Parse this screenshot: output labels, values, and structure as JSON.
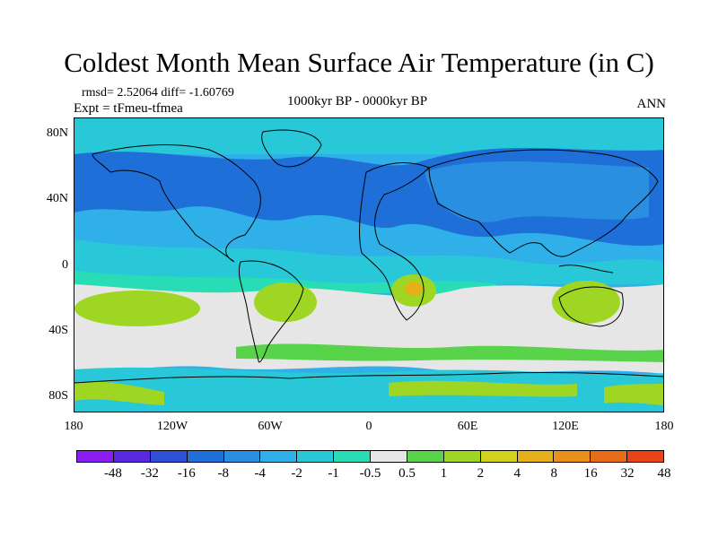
{
  "title": "Coldest Month Mean Surface Air Temperature (in C)",
  "stats": "rmsd= 2.52064 diff= -1.60769",
  "experiment": "Expt = tFmeu-tfmea",
  "period": "1000kyr BP - 0000kyr BP",
  "season": "ANN",
  "lat_labels": [
    "80N",
    "40N",
    "0",
    "40S",
    "80S"
  ],
  "lon_labels": [
    "180",
    "120W",
    "60W",
    "0",
    "60E",
    "120E",
    "180"
  ],
  "colorbar": {
    "colors": [
      "#8c1df2",
      "#5a28e0",
      "#2e4fd6",
      "#1e6fd8",
      "#2a8fe0",
      "#2fb0e8",
      "#29c8d8",
      "#28ddb6",
      "#e6e6e6",
      "#58d34a",
      "#9fd624",
      "#d2d21c",
      "#e5b01a",
      "#e8901a",
      "#e86c1a",
      "#e84418"
    ],
    "labels": [
      "-48",
      "-32",
      "-16",
      "-8",
      "-4",
      "-2",
      "-1",
      "-0.5",
      "0.5",
      "1",
      "2",
      "4",
      "8",
      "16",
      "32",
      "48"
    ]
  }
}
